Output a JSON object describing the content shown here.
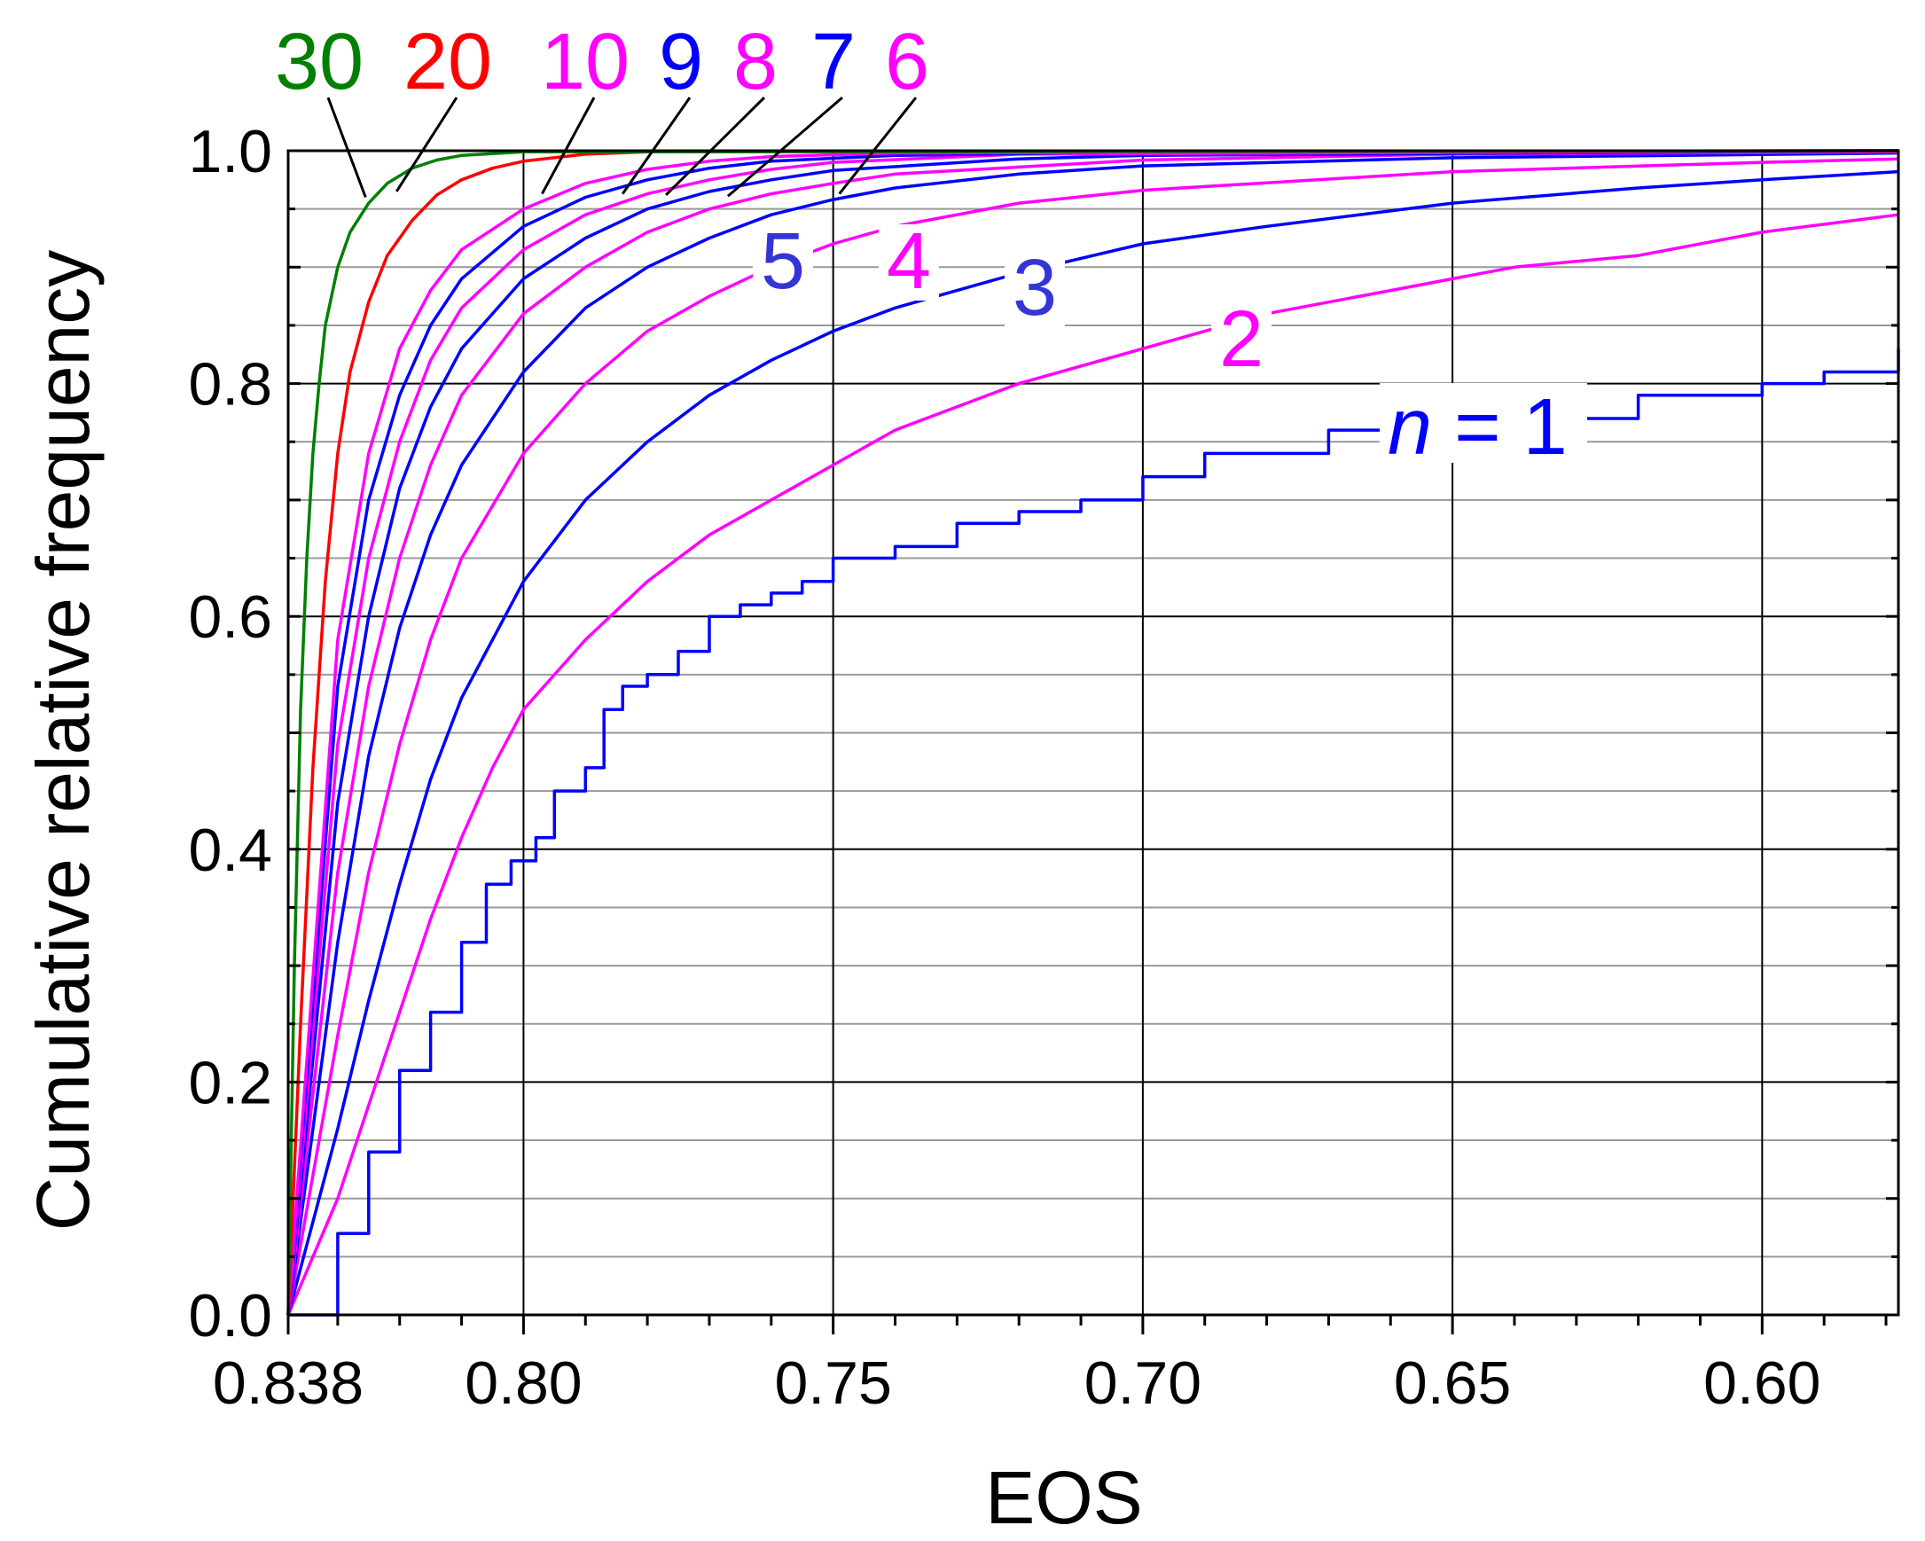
{
  "chart_data": {
    "type": "line",
    "title": "",
    "xlabel": "EOS",
    "ylabel": "Cumulative relative frequency",
    "xlim": [
      0.838,
      0.578
    ],
    "ylim": [
      0.0,
      1.0
    ],
    "x_reversed": true,
    "grid": true,
    "x_ticks": [
      0.838,
      0.8,
      0.75,
      0.7,
      0.65,
      0.6
    ],
    "x_tick_labels": [
      "0.838",
      "0.80",
      "0.75",
      "0.70",
      "0.65",
      "0.60"
    ],
    "y_ticks": [
      0.0,
      0.2,
      0.4,
      0.6,
      0.8,
      1.0
    ],
    "y_tick_labels": [
      "0.0",
      "0.2",
      "0.4",
      "0.6",
      "0.8",
      "1.0"
    ],
    "n_label_prefix": "n",
    "n_label_equals": " = ",
    "series": [
      {
        "name": "1",
        "color": "#0000ff",
        "step": true,
        "x": [
          0.838,
          0.83,
          0.825,
          0.82,
          0.815,
          0.81,
          0.806,
          0.802,
          0.798,
          0.795,
          0.79,
          0.787,
          0.784,
          0.78,
          0.775,
          0.77,
          0.765,
          0.76,
          0.755,
          0.75,
          0.74,
          0.73,
          0.72,
          0.71,
          0.7,
          0.69,
          0.67,
          0.64,
          0.62,
          0.6,
          0.59,
          0.578
        ],
        "y": [
          0.0,
          0.07,
          0.14,
          0.21,
          0.26,
          0.32,
          0.37,
          0.39,
          0.41,
          0.45,
          0.47,
          0.52,
          0.54,
          0.55,
          0.57,
          0.6,
          0.61,
          0.62,
          0.63,
          0.65,
          0.66,
          0.68,
          0.69,
          0.7,
          0.72,
          0.74,
          0.76,
          0.77,
          0.79,
          0.8,
          0.81,
          0.83
        ]
      },
      {
        "name": "2",
        "color": "#ff00ff",
        "x": [
          0.838,
          0.83,
          0.825,
          0.82,
          0.815,
          0.81,
          0.805,
          0.8,
          0.79,
          0.78,
          0.77,
          0.76,
          0.75,
          0.74,
          0.72,
          0.7,
          0.68,
          0.66,
          0.64,
          0.62,
          0.6,
          0.578
        ],
        "y": [
          0.0,
          0.1,
          0.18,
          0.26,
          0.34,
          0.41,
          0.47,
          0.52,
          0.58,
          0.63,
          0.67,
          0.7,
          0.73,
          0.76,
          0.8,
          0.83,
          0.86,
          0.88,
          0.9,
          0.91,
          0.93,
          0.945
        ]
      },
      {
        "name": "3",
        "color": "#0000ff",
        "x": [
          0.838,
          0.83,
          0.825,
          0.82,
          0.815,
          0.81,
          0.8,
          0.79,
          0.78,
          0.77,
          0.76,
          0.75,
          0.74,
          0.72,
          0.7,
          0.68,
          0.65,
          0.62,
          0.6,
          0.578
        ],
        "y": [
          0.0,
          0.16,
          0.27,
          0.37,
          0.46,
          0.53,
          0.63,
          0.7,
          0.75,
          0.79,
          0.82,
          0.845,
          0.865,
          0.895,
          0.92,
          0.935,
          0.955,
          0.968,
          0.975,
          0.982
        ]
      },
      {
        "name": "4",
        "color": "#ff00ff",
        "x": [
          0.838,
          0.83,
          0.825,
          0.82,
          0.815,
          0.81,
          0.8,
          0.79,
          0.78,
          0.77,
          0.76,
          0.75,
          0.74,
          0.72,
          0.7,
          0.65,
          0.6,
          0.578
        ],
        "y": [
          0.0,
          0.24,
          0.38,
          0.49,
          0.58,
          0.65,
          0.74,
          0.8,
          0.845,
          0.875,
          0.9,
          0.92,
          0.935,
          0.955,
          0.966,
          0.982,
          0.99,
          0.993
        ]
      },
      {
        "name": "5",
        "color": "#0000ff",
        "x": [
          0.838,
          0.83,
          0.825,
          0.82,
          0.815,
          0.81,
          0.8,
          0.79,
          0.78,
          0.77,
          0.76,
          0.75,
          0.74,
          0.72,
          0.7,
          0.65,
          0.578
        ],
        "y": [
          0.0,
          0.32,
          0.48,
          0.59,
          0.67,
          0.73,
          0.81,
          0.865,
          0.9,
          0.925,
          0.945,
          0.958,
          0.968,
          0.98,
          0.987,
          0.994,
          0.998
        ]
      },
      {
        "name": "6",
        "color": "#ff00ff",
        "x": [
          0.838,
          0.83,
          0.825,
          0.82,
          0.815,
          0.81,
          0.8,
          0.79,
          0.78,
          0.77,
          0.76,
          0.75,
          0.74,
          0.7,
          0.65,
          0.578
        ],
        "y": [
          0.0,
          0.38,
          0.54,
          0.65,
          0.73,
          0.79,
          0.86,
          0.9,
          0.93,
          0.95,
          0.963,
          0.972,
          0.98,
          0.992,
          0.997,
          0.999
        ]
      },
      {
        "name": "7",
        "color": "#0000ff",
        "x": [
          0.838,
          0.83,
          0.825,
          0.82,
          0.815,
          0.81,
          0.8,
          0.79,
          0.78,
          0.77,
          0.76,
          0.75,
          0.72,
          0.7,
          0.578
        ],
        "y": [
          0.0,
          0.44,
          0.6,
          0.71,
          0.78,
          0.83,
          0.89,
          0.925,
          0.95,
          0.965,
          0.975,
          0.983,
          0.993,
          0.996,
          1.0
        ]
      },
      {
        "name": "8",
        "color": "#ff00ff",
        "x": [
          0.838,
          0.83,
          0.825,
          0.82,
          0.815,
          0.81,
          0.8,
          0.79,
          0.78,
          0.77,
          0.76,
          0.75,
          0.72,
          0.578
        ],
        "y": [
          0.0,
          0.49,
          0.65,
          0.75,
          0.82,
          0.865,
          0.915,
          0.945,
          0.963,
          0.975,
          0.984,
          0.99,
          0.997,
          1.0
        ]
      },
      {
        "name": "9",
        "color": "#0000ff",
        "x": [
          0.838,
          0.83,
          0.825,
          0.82,
          0.815,
          0.81,
          0.8,
          0.79,
          0.78,
          0.77,
          0.76,
          0.74,
          0.7,
          0.578
        ],
        "y": [
          0.0,
          0.54,
          0.7,
          0.79,
          0.85,
          0.89,
          0.935,
          0.96,
          0.975,
          0.985,
          0.991,
          0.996,
          0.999,
          1.0
        ]
      },
      {
        "name": "10",
        "color": "#ff00ff",
        "x": [
          0.838,
          0.83,
          0.825,
          0.82,
          0.815,
          0.81,
          0.8,
          0.79,
          0.78,
          0.77,
          0.76,
          0.74,
          0.578
        ],
        "y": [
          0.0,
          0.58,
          0.74,
          0.83,
          0.88,
          0.915,
          0.95,
          0.972,
          0.984,
          0.991,
          0.995,
          0.998,
          1.0
        ]
      },
      {
        "name": "20",
        "color": "#ff0000",
        "x": [
          0.838,
          0.836,
          0.834,
          0.832,
          0.83,
          0.828,
          0.825,
          0.822,
          0.818,
          0.814,
          0.81,
          0.805,
          0.8,
          0.79,
          0.78,
          0.578
        ],
        "y": [
          0.0,
          0.25,
          0.47,
          0.63,
          0.74,
          0.81,
          0.87,
          0.91,
          0.94,
          0.962,
          0.975,
          0.985,
          0.991,
          0.997,
          0.999,
          1.0
        ]
      },
      {
        "name": "30",
        "color": "#008000",
        "x": [
          0.838,
          0.837,
          0.836,
          0.835,
          0.834,
          0.833,
          0.832,
          0.83,
          0.828,
          0.825,
          0.822,
          0.818,
          0.814,
          0.81,
          0.8,
          0.578
        ],
        "y": [
          0.0,
          0.3,
          0.52,
          0.65,
          0.74,
          0.8,
          0.85,
          0.9,
          0.93,
          0.955,
          0.972,
          0.985,
          0.992,
          0.996,
          0.999,
          1.0
        ]
      }
    ]
  }
}
